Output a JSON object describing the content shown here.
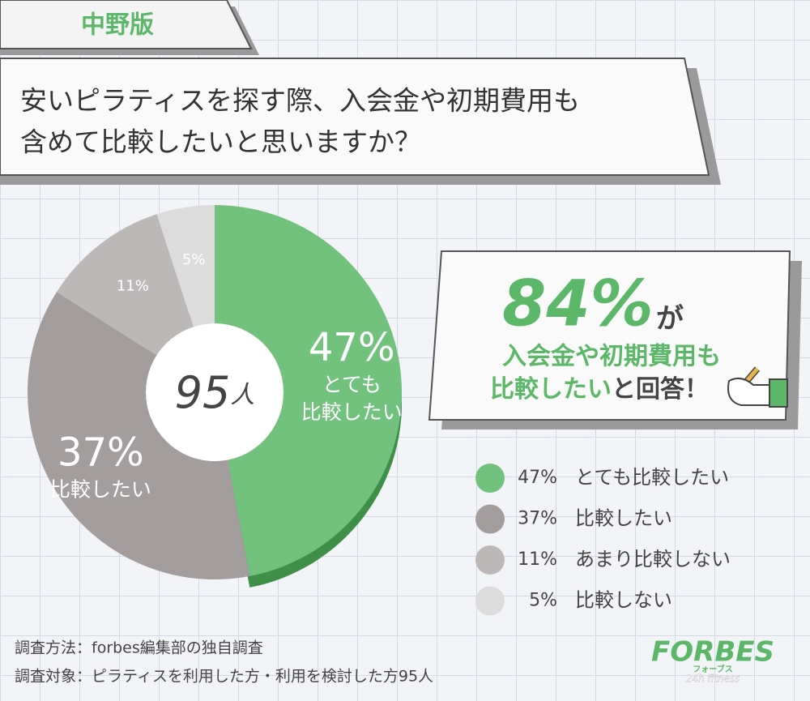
{
  "tag": "中野版",
  "question": [
    "安いピラティスを探す際、入会金や初期費用も",
    "含めて比較したいと思いますか？"
  ],
  "chart_data": {
    "type": "pie",
    "categories": [
      "とても比較したい",
      "比較したい",
      "あまり比較しない",
      "比較しない"
    ],
    "values": [
      47,
      37,
      11,
      5
    ],
    "value_labels": [
      "47%",
      "37%",
      "11%",
      "5%"
    ],
    "colors": [
      "#72c17c",
      "#a49d9d",
      "#bdb8b8",
      "#dcdcdc"
    ],
    "slice_labels": [
      [
        "とても",
        "比較したい"
      ],
      [
        "比較したい"
      ]
    ],
    "total": "95",
    "total_unit": "人"
  },
  "callout": {
    "big": "84%",
    "particle": "が",
    "line1": "入会金や初期費用も",
    "line2_highlight": "比較したい",
    "line2_rest": "と回答！"
  },
  "footnotes": [
    "調査方法：forbes編集部の独自調査",
    "調査対象：ピラティスを利用した方・利用を検討した方95人"
  ],
  "logo": {
    "name": "FORBES",
    "kana": "フォーブス",
    "sub": "24h fitness"
  }
}
